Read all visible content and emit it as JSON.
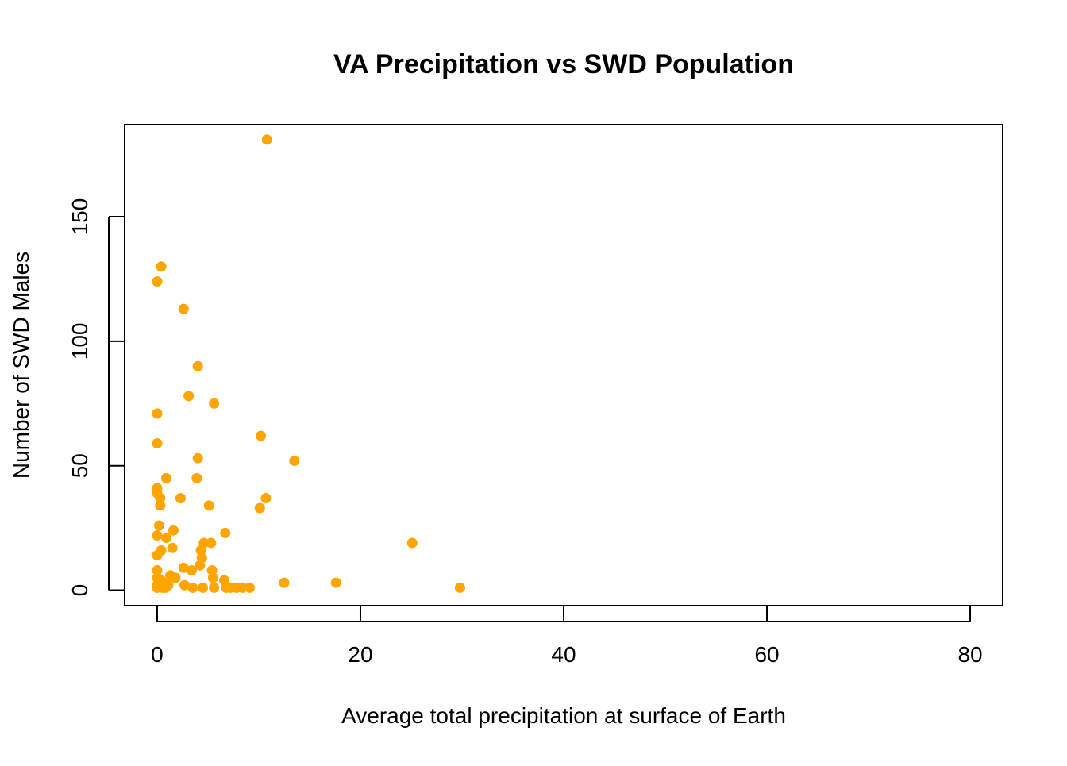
{
  "chart_data": {
    "type": "scatter",
    "title": "VA Precipitation vs SWD Population",
    "xlabel": "Average total precipitation at surface of Earth",
    "ylabel": "Number of SWD Males",
    "xlim": [
      -3.2,
      83.2
    ],
    "ylim": [
      -6.2,
      187
    ],
    "xticks": [
      0,
      20,
      40,
      60,
      80
    ],
    "xtick_labels": [
      "0",
      "20",
      "40",
      "60",
      "80"
    ],
    "yticks": [
      0,
      50,
      100,
      150
    ],
    "ytick_labels": [
      "0",
      "50",
      "100",
      "150"
    ],
    "grid": false,
    "legend": "none",
    "marker_color": "#FFA500",
    "series": [
      {
        "x": [
          10.8,
          0.4,
          0.0,
          2.6,
          4.0,
          3.1,
          5.6,
          0.0,
          10.2,
          0.0,
          4.0,
          13.5,
          0.9,
          3.9,
          0.0,
          0.0,
          0.3,
          2.3,
          5.1,
          10.7,
          0.3,
          10.1,
          6.7,
          1.6,
          0.2,
          0.0,
          0.9,
          25.1,
          4.6,
          5.3,
          1.5,
          4.3,
          0.4,
          4.4,
          0.0,
          4.2,
          2.6,
          3.4,
          5.4,
          0.0,
          1.3,
          5.5,
          0.0,
          1.8,
          6.6,
          0.4,
          12.5,
          17.6,
          0.6,
          2.7,
          0.0,
          1.1,
          0.5,
          4.5,
          3.5,
          7.2,
          7.8,
          8.4,
          9.1,
          5.6,
          29.8,
          0.0,
          0.8,
          6.8
        ],
        "y": [
          181,
          130,
          124,
          113,
          90,
          78,
          75,
          71,
          62,
          59,
          53,
          52,
          45,
          45,
          41,
          39,
          37,
          37,
          34,
          37,
          34,
          33,
          23,
          24,
          26,
          22,
          21,
          19,
          19,
          19,
          17,
          16,
          16,
          13,
          14,
          10,
          9,
          8,
          8,
          8,
          6,
          5,
          5,
          5,
          4,
          4,
          3,
          3,
          3,
          2,
          2,
          2,
          1,
          1,
          1,
          1,
          1,
          1,
          1,
          1,
          1,
          1,
          1,
          1
        ]
      }
    ]
  }
}
